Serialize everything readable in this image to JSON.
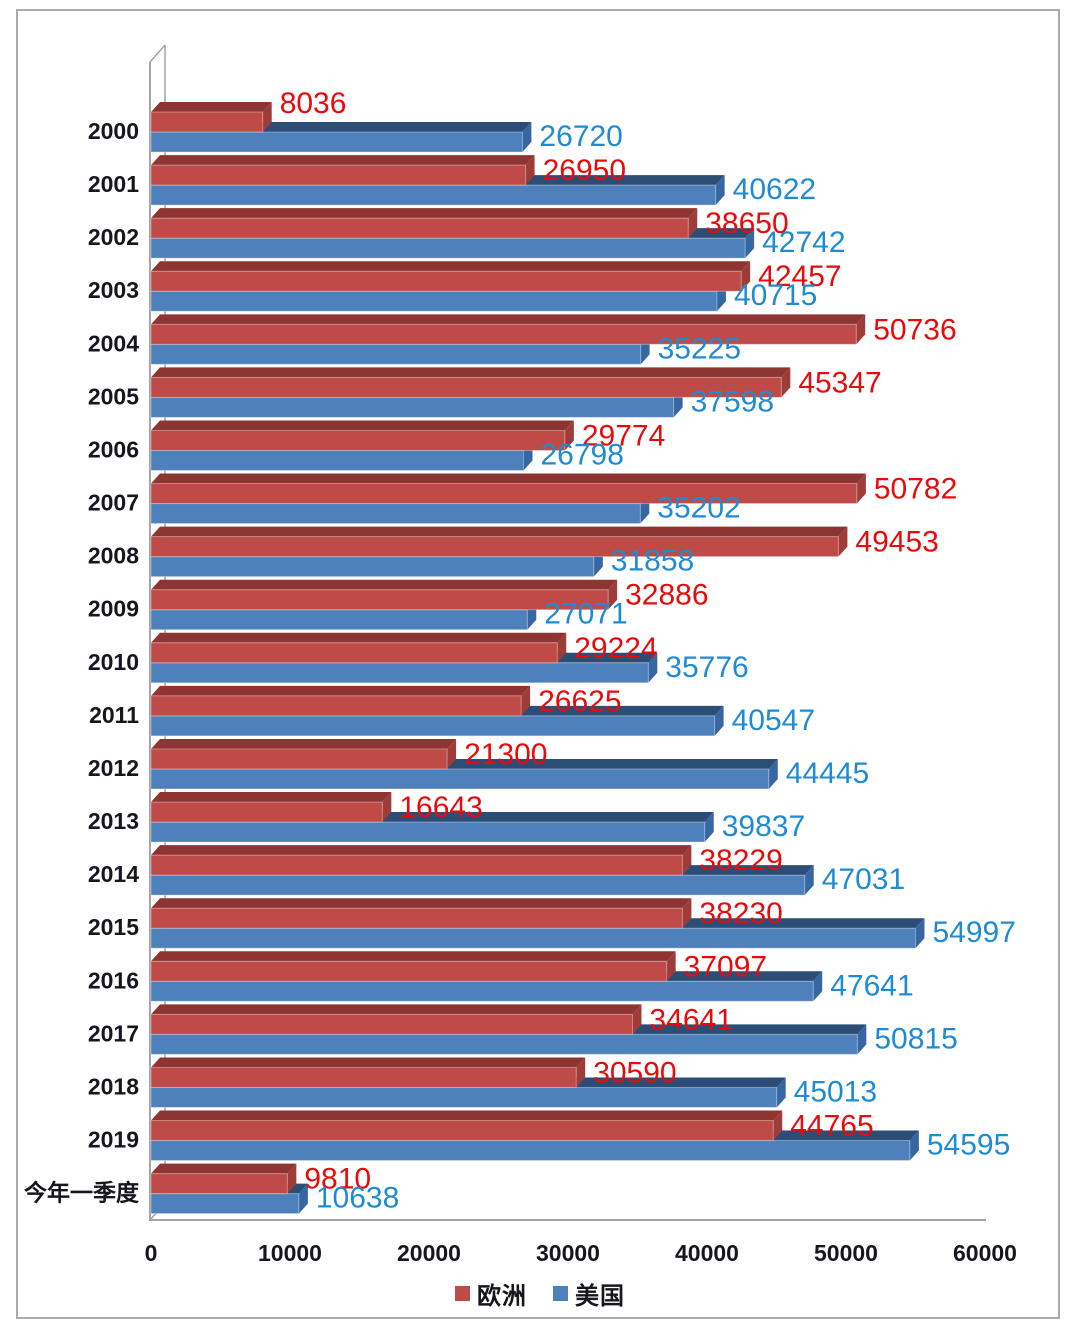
{
  "chart_data": {
    "type": "bar",
    "orientation": "horizontal",
    "style": "3d-clustered",
    "title": "",
    "xlabel": "",
    "ylabel": "",
    "xlim": [
      0,
      60000
    ],
    "x_ticks": [
      "0",
      "10000",
      "20000",
      "30000",
      "40000",
      "50000",
      "60000"
    ],
    "grid": false,
    "legend_position": "bottom",
    "categories": [
      "2000",
      "2001",
      "2002",
      "2003",
      "2004",
      "2005",
      "2006",
      "2007",
      "2008",
      "2009",
      "2010",
      "2011",
      "2012",
      "2013",
      "2014",
      "2015",
      "2016",
      "2017",
      "2018",
      "2019",
      "今年一季度"
    ],
    "series": [
      {
        "name": "欧洲",
        "key": "europe",
        "color": "#be4b48",
        "top_color": "#8e3432",
        "side_color": "#9e3c39",
        "label_color": "#e80b0b",
        "values": [
          8036,
          26950,
          38650,
          42457,
          50736,
          45347,
          29774,
          50782,
          49453,
          32886,
          29224,
          26625,
          21300,
          16643,
          38229,
          38230,
          37097,
          34641,
          30590,
          44765,
          9810
        ]
      },
      {
        "name": "美国",
        "key": "usa",
        "color": "#4e80bc",
        "top_color": "#2c4d75",
        "side_color": "#3767a3",
        "label_color": "#1e8bd2",
        "values": [
          26720,
          40622,
          42742,
          40715,
          35225,
          37598,
          26798,
          35202,
          31858,
          27071,
          35776,
          40547,
          44445,
          39837,
          47031,
          54997,
          47641,
          50815,
          45013,
          54595,
          10638
        ]
      }
    ],
    "axis_text_color": "#16161e",
    "frame_line_color": "#a4a4a4",
    "outer_border_color": "#ababab"
  }
}
